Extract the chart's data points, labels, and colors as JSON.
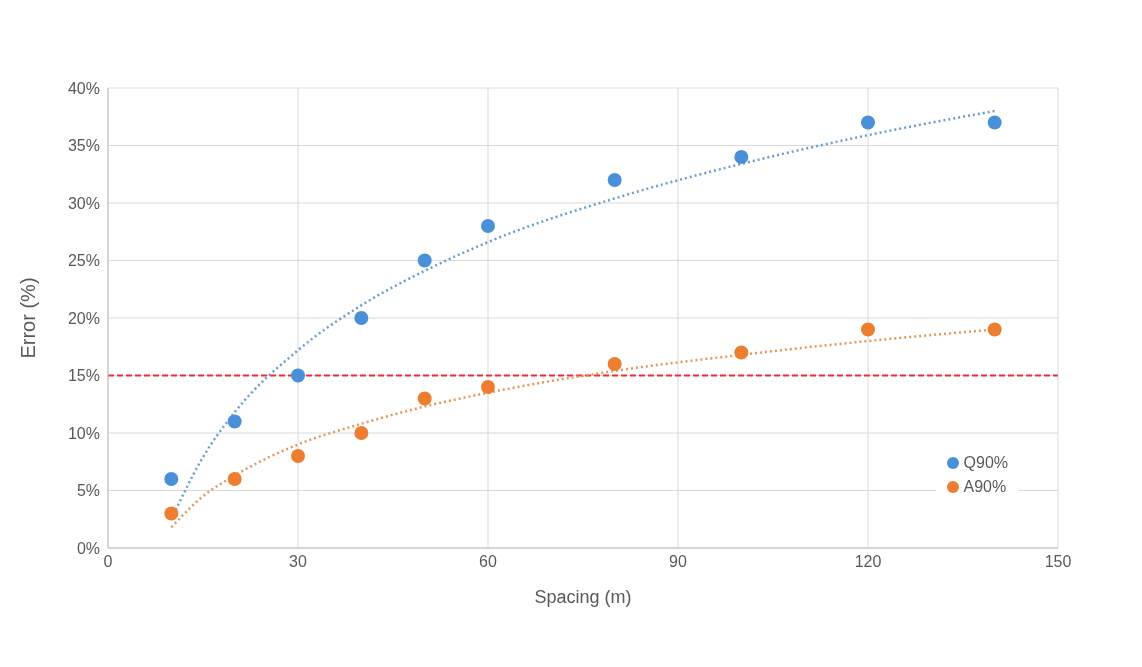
{
  "chart_data": {
    "type": "scatter",
    "xlabel": "Spacing (m)",
    "ylabel": "Error (%)",
    "x": [
      10,
      20,
      30,
      40,
      50,
      60,
      80,
      100,
      120,
      140
    ],
    "series": [
      {
        "name": "Q90%",
        "color": "#4a90d9",
        "values": [
          6,
          11,
          15,
          20,
          25,
          28,
          32,
          34,
          37,
          37
        ]
      },
      {
        "name": "A90%",
        "color": "#ed7d31",
        "values": [
          3,
          6,
          8,
          10,
          13,
          14,
          16,
          17,
          19,
          19
        ]
      },
      {
        "type": "line",
        "color": "#6a9ccf",
        "line_style": "dotted",
        "marker": "none",
        "x": [
          10,
          15,
          20,
          30,
          40,
          50,
          60,
          80,
          100,
          120,
          140
        ],
        "values": [
          2.5,
          7.9,
          11.8,
          17.2,
          21.1,
          24.1,
          26.6,
          30.4,
          33.4,
          35.9,
          38.0
        ]
      },
      {
        "type": "line",
        "color": "#e8955a",
        "line_style": "dotted",
        "marker": "none",
        "x": [
          10,
          15,
          20,
          30,
          40,
          50,
          60,
          80,
          100,
          120,
          140
        ],
        "values": [
          1.8,
          4.5,
          6.3,
          9.0,
          10.8,
          12.3,
          13.5,
          15.4,
          16.8,
          18.0,
          19.0
        ]
      }
    ],
    "xlim": [
      0,
      150
    ],
    "xticks": [
      0,
      30,
      60,
      90,
      120,
      150
    ],
    "ylim": [
      0,
      40
    ],
    "yticks": [
      {
        "value": 0,
        "label": "0%"
      },
      {
        "value": 5,
        "label": "5%"
      },
      {
        "value": 10,
        "label": "10%"
      },
      {
        "value": 15,
        "label": "15%"
      },
      {
        "value": 20,
        "label": "20%"
      },
      {
        "value": 25,
        "label": "25%"
      },
      {
        "value": 30,
        "label": "30%"
      },
      {
        "value": 35,
        "label": "35%"
      },
      {
        "value": 40,
        "label": "40%"
      }
    ],
    "ref_lines": [
      {
        "axis": "y",
        "value": 15,
        "color": "#e8303a",
        "line_style": "dashed"
      }
    ],
    "grid": true,
    "legend": "bottom right",
    "marker": "circle"
  }
}
